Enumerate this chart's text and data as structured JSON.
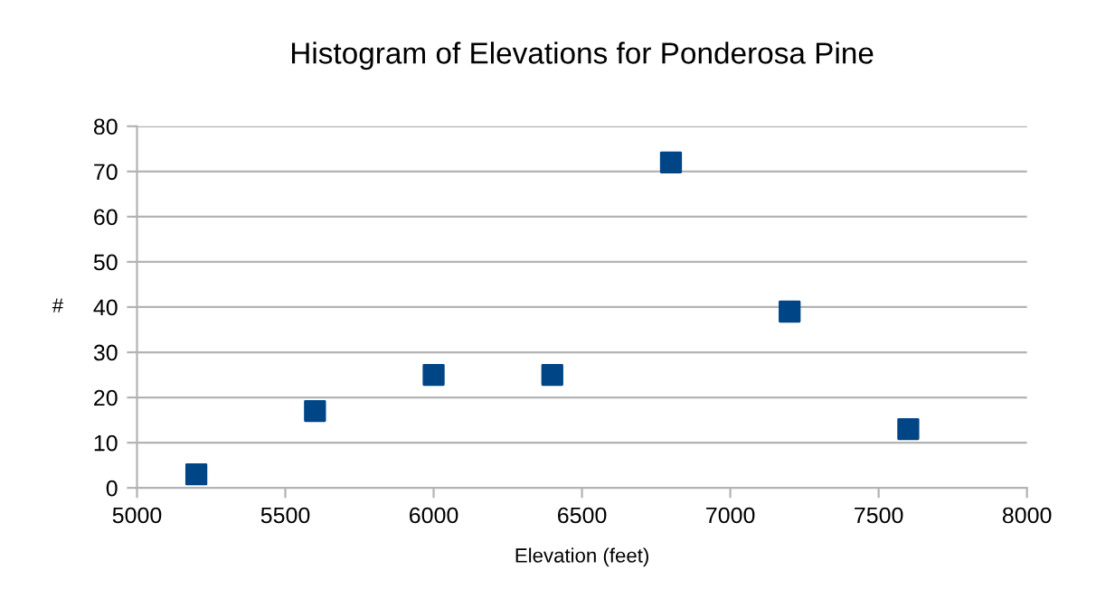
{
  "chart_data": {
    "type": "scatter",
    "title": "Histogram of Elevations for Ponderosa Pine",
    "xlabel": "Elevation (feet)",
    "ylabel": "#",
    "x": [
      5200,
      5600,
      6000,
      6400,
      6800,
      7200,
      7600
    ],
    "series": [
      {
        "color": "#004586",
        "values": [
          3,
          17,
          25,
          25,
          72,
          39,
          13
        ]
      }
    ],
    "xlim": [
      5000,
      8000
    ],
    "xticks": [
      5000,
      5500,
      6000,
      6500,
      7000,
      7500,
      8000
    ],
    "ylim": [
      0,
      80
    ],
    "yticks": [
      0,
      10,
      20,
      30,
      40,
      50,
      60,
      70,
      80
    ],
    "grid": "y",
    "marker": "square",
    "legend": false
  }
}
